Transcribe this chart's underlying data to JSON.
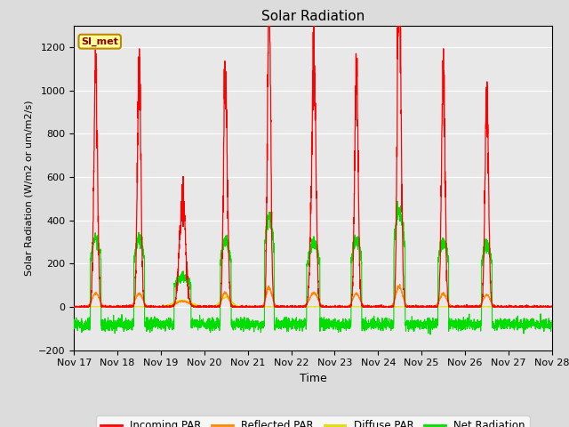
{
  "title": "Solar Radiation",
  "xlabel": "Time",
  "ylabel": "Solar Radiation (W/m2 or um/m2/s)",
  "ylim": [
    -200,
    1300
  ],
  "yticks": [
    -200,
    0,
    200,
    400,
    600,
    800,
    1000,
    1200
  ],
  "n_days": 11,
  "xtick_labels": [
    "Nov 17",
    "Nov 18",
    "Nov 19",
    "Nov 20",
    "Nov 21",
    "Nov 22",
    "Nov 23",
    "Nov 24",
    "Nov 25",
    "Nov 26",
    "Nov 27",
    "Nov 28"
  ],
  "colors": {
    "incoming": "#FF0000",
    "reflected": "#FF8800",
    "diffuse": "#DDDD00",
    "net": "#00DD00",
    "background": "#E8E8E8",
    "grid": "#FFFFFF"
  },
  "legend_labels": [
    "Incoming PAR",
    "Reflected PAR",
    "Diffuse PAR",
    "Net Radiation"
  ],
  "watermark_text": "SI_met",
  "watermark_bg": "#FFFF99",
  "watermark_border": "#BB8800",
  "figsize": [
    6.4,
    4.8
  ],
  "dpi": 100
}
